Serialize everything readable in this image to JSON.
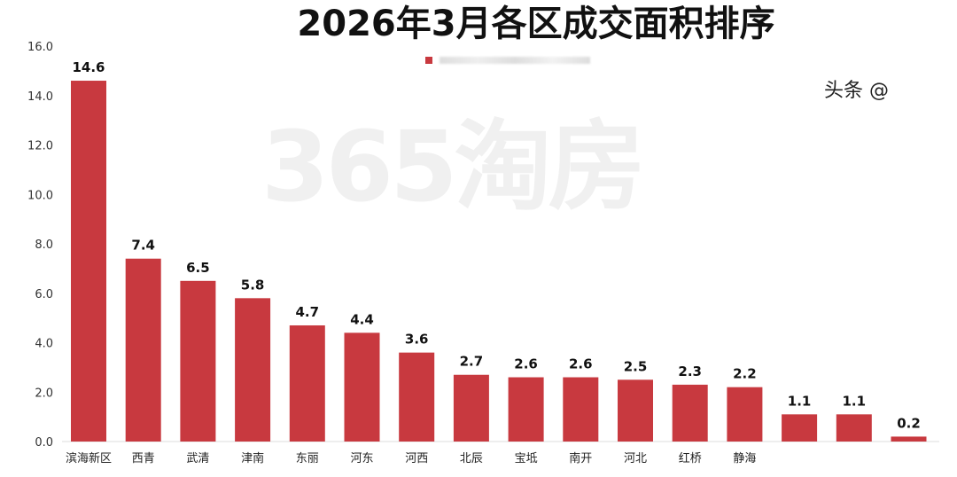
{
  "watermark": "365淘房",
  "overlay_watermark": "头条 @",
  "chart_data": {
    "type": "bar",
    "title": "2026年3月各区成交面积排序",
    "legend": [
      ""
    ],
    "categories": [
      "滨海新区",
      "西青",
      "武清",
      "津南",
      "东丽",
      "河东",
      "河西",
      "北辰",
      "宝坻",
      "南开",
      "河北",
      "红桥",
      "静海",
      "",
      "",
      ""
    ],
    "values": [
      14.6,
      7.4,
      6.5,
      5.8,
      4.7,
      4.4,
      3.6,
      2.7,
      2.6,
      2.6,
      2.5,
      2.3,
      2.2,
      1.1,
      1.1,
      0.2
    ],
    "yticks": [
      "0.0",
      "2.0",
      "4.0",
      "6.0",
      "8.0",
      "10.0",
      "12.0",
      "14.0",
      "16.0"
    ],
    "ylim": [
      0,
      16
    ],
    "color": "#c8393f",
    "xlabel": "",
    "ylabel": ""
  }
}
